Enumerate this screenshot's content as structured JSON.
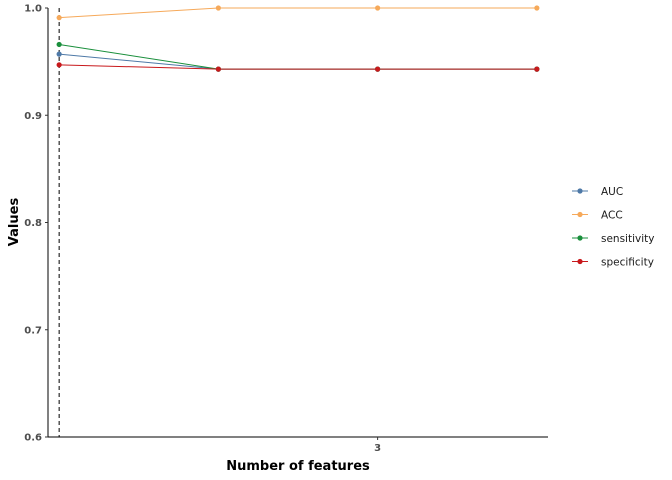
{
  "chart_data": {
    "type": "line",
    "xlabel": "Number of features",
    "ylabel": "Values",
    "x": [
      1,
      2,
      3,
      4
    ],
    "x_tick_values": [
      3
    ],
    "x_tick_labels": [
      "3"
    ],
    "xlim": [
      0.93,
      4.07
    ],
    "ylim": [
      0.6,
      1.0
    ],
    "y_ticks": [
      0.6,
      0.7,
      0.8,
      0.9,
      1.0
    ],
    "y_tick_labels": [
      "0.6",
      "0.7",
      "0.8",
      "0.9",
      "1.0"
    ],
    "vline_x": 1,
    "grid": false,
    "legend_position": "right",
    "series": [
      {
        "name": "AUC",
        "color": "#4e79a7",
        "values": [
          0.957,
          0.943,
          0.943,
          0.943
        ]
      },
      {
        "name": "ACC",
        "color": "#f6a95a",
        "values": [
          0.991,
          1.0,
          1.0,
          1.0
        ]
      },
      {
        "name": "sensitivity",
        "color": "#1a8f3c",
        "values": [
          0.966,
          0.943,
          0.943,
          0.943
        ]
      },
      {
        "name": "specificity",
        "color": "#c8191c",
        "values": [
          0.947,
          0.943,
          0.943,
          0.943
        ]
      }
    ]
  }
}
